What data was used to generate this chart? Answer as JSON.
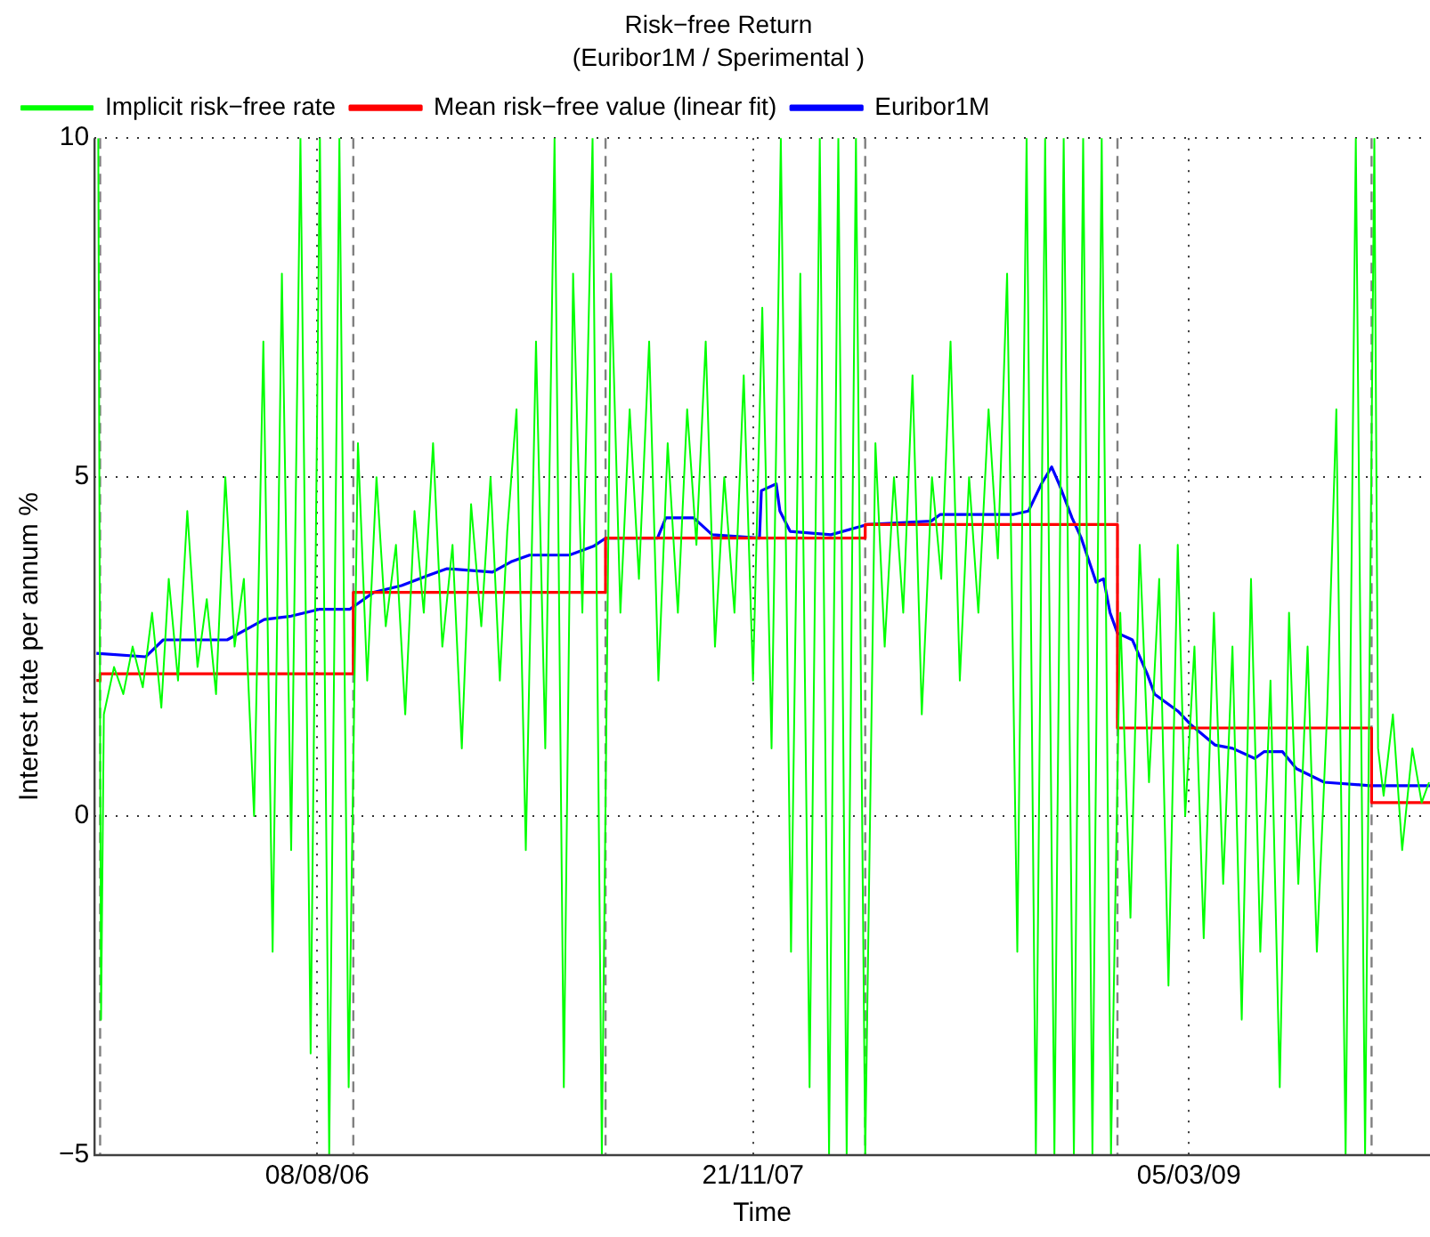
{
  "chart_data": {
    "type": "line",
    "title": "Risk−free Return",
    "subtitle": "(Euribor1M / Sperimental )",
    "xlabel": "Time",
    "ylabel": "Interest rate per annum %",
    "xlim": [
      "2005-12-11",
      "2009-11-20"
    ],
    "xticks": [
      {
        "value": "2006-08-08",
        "label": "08/08/06"
      },
      {
        "value": "2007-11-21",
        "label": "21/11/07"
      },
      {
        "value": "2009-03-05",
        "label": "05/03/09"
      }
    ],
    "ylim": [
      -5,
      10
    ],
    "yticks": [
      {
        "value": -5,
        "label": "−5"
      },
      0,
      5,
      10
    ],
    "grid": true,
    "legend": "top left",
    "line_style": "solid",
    "ref_lines": [
      {
        "axis": "x",
        "value": "2005-12-17",
        "color": "#808080",
        "line_style": "dashed"
      },
      {
        "axis": "x",
        "value": "2006-09-16",
        "color": "#808080",
        "line_style": "dashed"
      },
      {
        "axis": "x",
        "value": "2007-06-15",
        "color": "#808080",
        "line_style": "dashed"
      },
      {
        "axis": "x",
        "value": "2008-03-21",
        "color": "#808080",
        "line_style": "dashed"
      },
      {
        "axis": "x",
        "value": "2008-12-18",
        "color": "#808080",
        "line_style": "dashed"
      },
      {
        "axis": "x",
        "value": "2009-09-18",
        "color": "#808080",
        "line_style": "dashed"
      }
    ],
    "series": [
      {
        "name": "Implicit risk−free rate",
        "type": "line",
        "color": "#00ff00",
        "x": [
          "2005-12-15",
          "2005-12-18",
          "2005-12-21",
          "2006-01-01",
          "2006-01-11",
          "2006-01-21",
          "2006-02-01",
          "2006-02-11",
          "2006-02-21",
          "2006-03-01",
          "2006-03-11",
          "2006-03-21",
          "2006-04-01",
          "2006-04-11",
          "2006-04-21",
          "2006-05-01",
          "2006-05-11",
          "2006-05-21",
          "2006-06-01",
          "2006-06-11",
          "2006-06-21",
          "2006-07-01",
          "2006-07-11",
          "2006-07-21",
          "2006-08-01",
          "2006-08-11",
          "2006-08-21",
          "2006-09-01",
          "2006-09-11",
          "2006-09-21",
          "2006-10-01",
          "2006-10-11",
          "2006-10-21",
          "2006-11-01",
          "2006-11-11",
          "2006-11-21",
          "2006-12-01",
          "2006-12-11",
          "2006-12-21",
          "2007-01-01",
          "2007-01-11",
          "2007-01-21",
          "2007-02-01",
          "2007-02-11",
          "2007-02-21",
          "2007-03-01",
          "2007-03-11",
          "2007-03-21",
          "2007-04-01",
          "2007-04-11",
          "2007-04-21",
          "2007-05-01",
          "2007-05-11",
          "2007-05-21",
          "2007-06-01",
          "2007-06-11",
          "2007-06-21",
          "2007-07-01",
          "2007-07-11",
          "2007-07-21",
          "2007-08-01",
          "2007-08-11",
          "2007-08-21",
          "2007-09-01",
          "2007-09-11",
          "2007-09-21",
          "2007-10-01",
          "2007-10-11",
          "2007-10-21",
          "2007-11-01",
          "2007-11-11",
          "2007-11-21",
          "2007-12-01",
          "2007-12-11",
          "2007-12-21",
          "2008-01-01",
          "2008-01-11",
          "2008-01-21",
          "2008-02-01",
          "2008-02-11",
          "2008-02-21",
          "2008-03-01",
          "2008-03-11",
          "2008-03-21",
          "2008-04-01",
          "2008-04-11",
          "2008-04-21",
          "2008-05-01",
          "2008-05-11",
          "2008-05-21",
          "2008-06-01",
          "2008-06-11",
          "2008-06-21",
          "2008-07-01",
          "2008-07-11",
          "2008-07-21",
          "2008-08-01",
          "2008-08-11",
          "2008-08-21",
          "2008-09-01",
          "2008-09-11",
          "2008-09-21",
          "2008-10-01",
          "2008-10-11",
          "2008-10-21",
          "2008-11-01",
          "2008-11-11",
          "2008-11-21",
          "2008-12-01",
          "2008-12-11",
          "2008-12-21",
          "2009-01-01",
          "2009-01-11",
          "2009-01-21",
          "2009-02-01",
          "2009-02-11",
          "2009-02-21",
          "2009-03-01",
          "2009-03-11",
          "2009-03-21",
          "2009-04-01",
          "2009-04-11",
          "2009-04-21",
          "2009-05-01",
          "2009-05-11",
          "2009-05-21",
          "2009-06-01",
          "2009-06-11",
          "2009-06-21",
          "2009-07-01",
          "2009-07-11",
          "2009-07-21",
          "2009-08-01",
          "2009-08-11",
          "2009-08-21",
          "2009-09-01",
          "2009-09-11",
          "2009-09-21",
          "2009-09-25",
          "2009-10-01",
          "2009-10-11",
          "2009-10-21",
          "2009-11-01",
          "2009-11-11",
          "2009-11-19"
        ],
        "values": [
          10,
          -3,
          1.5,
          2.2,
          1.8,
          2.5,
          1.9,
          3,
          1.6,
          3.5,
          2,
          4.5,
          2.2,
          3.2,
          1.8,
          5,
          2.5,
          3.5,
          0,
          7,
          -2,
          8,
          -0.5,
          10,
          -3.5,
          10,
          -5,
          10,
          -4,
          5.5,
          2,
          5,
          2.8,
          4,
          1.5,
          4.5,
          3,
          5.5,
          2.5,
          4,
          1,
          4.6,
          2.8,
          5,
          2,
          4.2,
          6,
          -0.5,
          7,
          1,
          10,
          -4,
          8,
          3,
          10,
          -5,
          8,
          3,
          6,
          3.5,
          7,
          2,
          5.5,
          3,
          6,
          4,
          7,
          2.5,
          5,
          3,
          6.5,
          2,
          7.5,
          1,
          10,
          -2,
          8,
          -4,
          10,
          -5,
          10,
          -5,
          10,
          -5,
          5.5,
          2.5,
          5,
          3,
          6.5,
          1.5,
          5,
          3.5,
          7,
          2,
          5,
          3,
          6,
          3.8,
          8,
          -2,
          10,
          -5,
          10,
          -5,
          10,
          -5,
          10,
          -5,
          10,
          -5,
          3,
          -1.5,
          4,
          0.5,
          3.5,
          -2.5,
          4,
          0,
          2.5,
          -1.8,
          3,
          -1,
          2.5,
          -3,
          3.5,
          -2,
          2,
          -4,
          3,
          -1,
          2.5,
          -2,
          1.5,
          6,
          -5,
          10,
          -5,
          10,
          1,
          0.3,
          1.5,
          -0.5,
          1,
          0.2,
          0.5
        ]
      },
      {
        "name": "Mean risk−free value (linear fit)",
        "type": "step",
        "color": "#ff0000",
        "x": [
          "2005-12-13",
          "2005-12-17",
          "2006-09-16",
          "2007-06-15",
          "2008-03-21",
          "2008-12-18",
          "2009-09-18",
          "2009-11-20"
        ],
        "values": [
          2.0,
          2.1,
          3.3,
          4.1,
          4.3,
          1.3,
          0.2,
          0.2
        ]
      },
      {
        "name": "Euribor1M",
        "type": "line",
        "color": "#0000ff",
        "x": [
          "2005-12-13",
          "2006-02-04",
          "2006-02-23",
          "2006-05-03",
          "2006-05-23",
          "2006-06-12",
          "2006-07-11",
          "2006-08-10",
          "2006-09-12",
          "2006-10-08",
          "2006-11-07",
          "2006-12-06",
          "2006-12-26",
          "2007-02-13",
          "2007-03-05",
          "2007-03-25",
          "2007-05-07",
          "2007-06-02",
          "2007-06-15",
          "2007-08-10",
          "2007-08-19",
          "2007-09-18",
          "2007-10-08",
          "2007-11-28",
          "2007-11-30",
          "2007-12-16",
          "2007-12-20",
          "2007-12-31",
          "2008-02-13",
          "2008-03-23",
          "2008-05-31",
          "2008-06-10",
          "2008-08-28",
          "2008-09-13",
          "2008-09-27",
          "2008-10-08",
          "2008-10-16",
          "2008-10-30",
          "2008-11-09",
          "2008-11-25",
          "2008-12-03",
          "2008-12-10",
          "2008-12-18",
          "2009-01-03",
          "2009-01-19",
          "2009-01-27",
          "2009-02-21",
          "2009-03-07",
          "2009-04-02",
          "2009-04-21",
          "2009-05-15",
          "2009-05-25",
          "2009-06-14",
          "2009-06-29",
          "2009-07-29",
          "2009-09-16",
          "2009-11-20"
        ],
        "values": [
          2.4,
          2.35,
          2.6,
          2.6,
          2.75,
          2.9,
          2.95,
          3.05,
          3.05,
          3.3,
          3.4,
          3.55,
          3.65,
          3.6,
          3.75,
          3.85,
          3.85,
          3.98,
          4.1,
          4.1,
          4.4,
          4.4,
          4.15,
          4.1,
          4.8,
          4.9,
          4.5,
          4.2,
          4.15,
          4.3,
          4.35,
          4.45,
          4.45,
          4.5,
          4.9,
          5.15,
          4.9,
          4.4,
          4.1,
          3.45,
          3.5,
          3.0,
          2.7,
          2.6,
          2.1,
          1.8,
          1.55,
          1.35,
          1.05,
          1.0,
          0.85,
          0.95,
          0.95,
          0.7,
          0.5,
          0.45,
          0.45
        ]
      }
    ]
  }
}
